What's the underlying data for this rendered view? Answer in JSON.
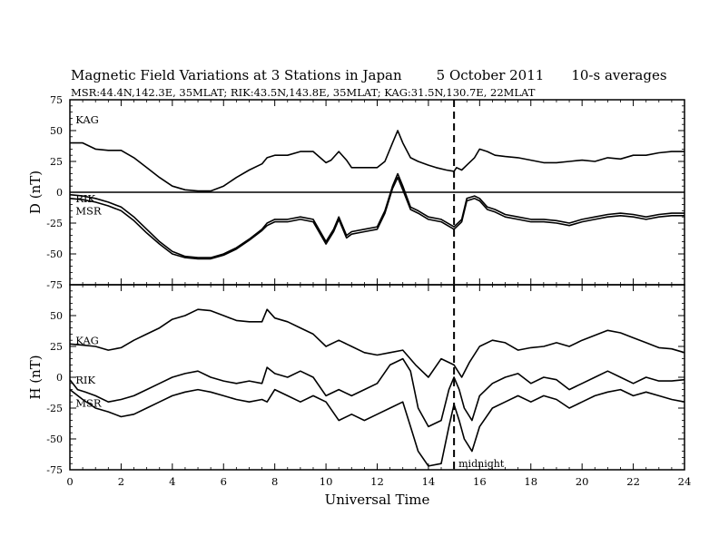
{
  "title": "Magnetic Field Variations at 3 Stations in Japan",
  "date": "5   October 2011",
  "averaging": "10-s averages",
  "stations_line": "MSR:44.4N,142.3E, 35MLAT;  RIK:43.5N,143.8E, 35MLAT;  KAG:31.5N,130.7E, 22MLAT",
  "xlabel": "Universal Time",
  "annotation": "midnight",
  "chart_data": [
    {
      "type": "line",
      "ylabel": "D (nT)",
      "xlim": [
        0,
        24
      ],
      "ylim": [
        -75,
        75
      ],
      "xticks": [
        0,
        2,
        4,
        6,
        8,
        10,
        12,
        14,
        16,
        18,
        20,
        22,
        24
      ],
      "yticks": [
        -75,
        -50,
        -25,
        0,
        25,
        50,
        75
      ],
      "zero_line": true,
      "vertical_marker": 15,
      "series": [
        {
          "name": "KAG",
          "x": [
            0,
            0.5,
            1,
            1.5,
            2,
            2.5,
            3,
            3.5,
            4,
            4.5,
            5,
            5.5,
            6,
            6.5,
            7,
            7.5,
            7.7,
            8,
            8.5,
            9,
            9.5,
            10,
            10.2,
            10.5,
            10.8,
            11,
            11.5,
            12,
            12.3,
            12.6,
            12.8,
            13,
            13.3,
            13.6,
            14,
            14.3,
            14.7,
            15,
            15.1,
            15.3,
            15.5,
            15.8,
            16,
            16.3,
            16.6,
            17,
            17.5,
            18,
            18.5,
            19,
            19.5,
            20,
            20.5,
            21,
            21.5,
            22,
            22.5,
            23,
            23.5,
            24
          ],
          "y": [
            40,
            40,
            35,
            34,
            34,
            28,
            20,
            12,
            5,
            2,
            1,
            1,
            5,
            12,
            18,
            23,
            28,
            30,
            30,
            33,
            33,
            24,
            26,
            33,
            26,
            20,
            20,
            20,
            25,
            40,
            50,
            40,
            28,
            25,
            22,
            20,
            18,
            17,
            20,
            18,
            22,
            28,
            35,
            33,
            30,
            29,
            28,
            26,
            24,
            24,
            25,
            26,
            25,
            28,
            27,
            30,
            30,
            32,
            33,
            33
          ]
        },
        {
          "name": "RIK",
          "x": [
            0,
            0.5,
            1,
            1.5,
            2,
            2.5,
            3,
            3.5,
            4,
            4.5,
            5,
            5.5,
            6,
            6.5,
            7,
            7.5,
            7.7,
            8,
            8.5,
            9,
            9.5,
            10,
            10.3,
            10.5,
            10.8,
            11,
            11.5,
            12,
            12.3,
            12.6,
            12.8,
            13,
            13.3,
            13.6,
            14,
            14.5,
            15,
            15.3,
            15.5,
            15.8,
            16,
            16.3,
            16.6,
            17,
            17.5,
            18,
            18.5,
            19,
            19.5,
            20,
            20.5,
            21,
            21.5,
            22,
            22.5,
            23,
            23.5,
            24
          ],
          "y": [
            -2,
            -3,
            -5,
            -8,
            -12,
            -20,
            -30,
            -40,
            -48,
            -52,
            -53,
            -53,
            -50,
            -45,
            -38,
            -30,
            -25,
            -22,
            -22,
            -20,
            -22,
            -40,
            -30,
            -20,
            -35,
            -32,
            -30,
            -28,
            -15,
            5,
            15,
            5,
            -12,
            -15,
            -20,
            -22,
            -28,
            -22,
            -5,
            -3,
            -5,
            -12,
            -14,
            -18,
            -20,
            -22,
            -22,
            -23,
            -25,
            -22,
            -20,
            -18,
            -17,
            -18,
            -20,
            -18,
            -17,
            -17
          ]
        },
        {
          "name": "MSR",
          "x": [
            0,
            0.5,
            1,
            1.5,
            2,
            2.5,
            3,
            3.5,
            4,
            4.5,
            5,
            5.5,
            6,
            6.5,
            7,
            7.5,
            7.7,
            8,
            8.5,
            9,
            9.5,
            10,
            10.3,
            10.5,
            10.8,
            11,
            11.5,
            12,
            12.3,
            12.6,
            12.8,
            13,
            13.3,
            13.6,
            14,
            14.5,
            15,
            15.3,
            15.5,
            15.8,
            16,
            16.3,
            16.6,
            17,
            17.5,
            18,
            18.5,
            19,
            19.5,
            20,
            20.5,
            21,
            21.5,
            22,
            22.5,
            23,
            23.5,
            24
          ],
          "y": [
            -5,
            -6,
            -8,
            -11,
            -15,
            -23,
            -33,
            -42,
            -50,
            -53,
            -54,
            -54,
            -51,
            -46,
            -39,
            -31,
            -27,
            -24,
            -24,
            -22,
            -24,
            -42,
            -32,
            -22,
            -37,
            -34,
            -32,
            -30,
            -17,
            3,
            12,
            2,
            -14,
            -17,
            -22,
            -24,
            -30,
            -24,
            -7,
            -5,
            -7,
            -14,
            -16,
            -20,
            -22,
            -24,
            -24,
            -25,
            -27,
            -24,
            -22,
            -20,
            -19,
            -20,
            -22,
            -20,
            -19,
            -19
          ]
        }
      ],
      "labels": [
        "KAG",
        "RIK",
        "MSR"
      ]
    },
    {
      "type": "line",
      "ylabel": "H (nT)",
      "xlim": [
        0,
        24
      ],
      "ylim": [
        -75,
        75
      ],
      "xticks": [
        0,
        2,
        4,
        6,
        8,
        10,
        12,
        14,
        16,
        18,
        20,
        22,
        24
      ],
      "yticks": [
        -75,
        -50,
        -25,
        0,
        25,
        50,
        75
      ],
      "zero_line": false,
      "vertical_marker": 15,
      "series": [
        {
          "name": "KAG",
          "x": [
            0,
            0.5,
            1,
            1.5,
            2,
            2.5,
            3,
            3.5,
            4,
            4.5,
            5,
            5.5,
            6,
            6.5,
            7,
            7.5,
            7.7,
            8,
            8.5,
            9,
            9.5,
            10,
            10.5,
            11,
            11.5,
            12,
            12.5,
            13,
            13.5,
            14,
            14.5,
            15,
            15.3,
            15.6,
            16,
            16.5,
            17,
            17.5,
            18,
            18.5,
            19,
            19.5,
            20,
            20.5,
            21,
            21.5,
            22,
            22.5,
            23,
            23.5,
            24
          ],
          "y": [
            27,
            26,
            25,
            22,
            24,
            30,
            35,
            40,
            47,
            50,
            55,
            54,
            50,
            46,
            45,
            45,
            55,
            48,
            45,
            40,
            35,
            25,
            30,
            25,
            20,
            18,
            20,
            22,
            10,
            0,
            15,
            10,
            0,
            12,
            25,
            30,
            28,
            22,
            24,
            25,
            28,
            25,
            30,
            34,
            38,
            36,
            32,
            28,
            24,
            23,
            20
          ]
        },
        {
          "name": "RIK",
          "x": [
            0,
            0.3,
            0.6,
            1,
            1.5,
            2,
            2.5,
            3,
            3.5,
            4,
            4.5,
            5,
            5.5,
            6,
            6.5,
            7,
            7.5,
            7.7,
            8,
            8.5,
            9,
            9.5,
            10,
            10.5,
            11,
            11.5,
            12,
            12.5,
            13,
            13.3,
            13.6,
            14,
            14.5,
            14.8,
            15,
            15.2,
            15.4,
            15.7,
            16,
            16.5,
            17,
            17.5,
            18,
            18.5,
            19,
            19.5,
            20,
            20.5,
            21,
            21.5,
            22,
            22.5,
            23,
            23.5,
            24
          ],
          "y": [
            -2,
            -10,
            -12,
            -15,
            -20,
            -18,
            -15,
            -10,
            -5,
            0,
            3,
            5,
            0,
            -3,
            -5,
            -3,
            -5,
            8,
            3,
            0,
            5,
            0,
            -15,
            -10,
            -15,
            -10,
            -5,
            10,
            15,
            5,
            -25,
            -40,
            -35,
            -10,
            0,
            -10,
            -25,
            -35,
            -15,
            -5,
            0,
            3,
            -5,
            0,
            -2,
            -10,
            -5,
            0,
            5,
            0,
            -5,
            0,
            -3,
            -3,
            -2
          ]
        },
        {
          "name": "MSR",
          "x": [
            0,
            0.5,
            1,
            1.5,
            2,
            2.5,
            3,
            3.5,
            4,
            4.5,
            5,
            5.5,
            6,
            6.5,
            7,
            7.5,
            7.7,
            8,
            8.5,
            9,
            9.5,
            10,
            10.5,
            11,
            11.5,
            12,
            12.5,
            13,
            13.3,
            13.6,
            14,
            14.5,
            14.8,
            15,
            15.2,
            15.4,
            15.7,
            16,
            16.5,
            17,
            17.5,
            18,
            18.5,
            19,
            19.5,
            20,
            20.5,
            21,
            21.5,
            22,
            22.5,
            23,
            23.5,
            24
          ],
          "y": [
            -10,
            -18,
            -25,
            -28,
            -32,
            -30,
            -25,
            -20,
            -15,
            -12,
            -10,
            -12,
            -15,
            -18,
            -20,
            -18,
            -20,
            -10,
            -15,
            -20,
            -15,
            -20,
            -35,
            -30,
            -35,
            -30,
            -25,
            -20,
            -40,
            -60,
            -72,
            -70,
            -40,
            -22,
            -35,
            -50,
            -60,
            -40,
            -25,
            -20,
            -15,
            -20,
            -15,
            -18,
            -25,
            -20,
            -15,
            -12,
            -10,
            -15,
            -12,
            -15,
            -18,
            -20
          ]
        }
      ],
      "labels": [
        "KAG",
        "RIK",
        "MSR"
      ]
    }
  ]
}
